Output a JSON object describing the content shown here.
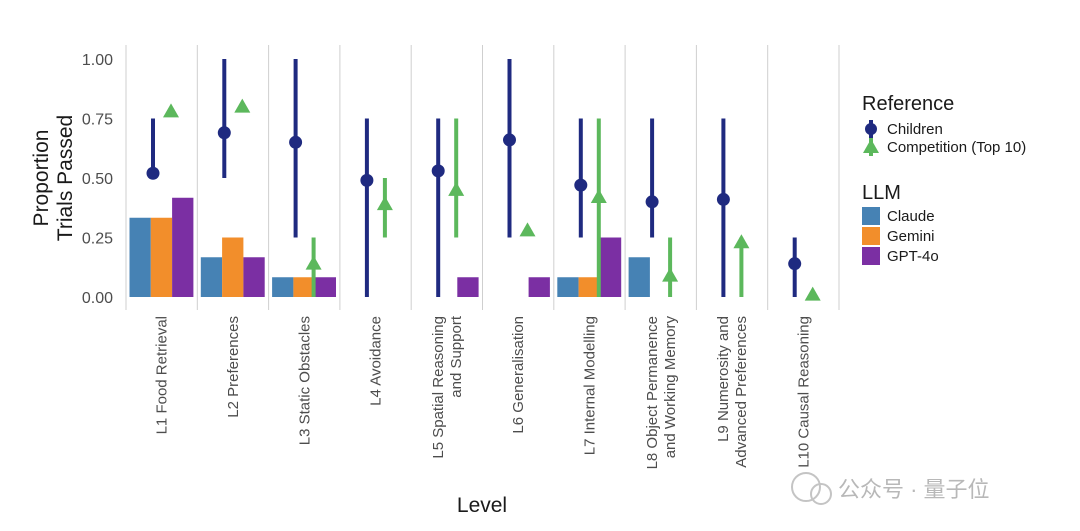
{
  "chart_data": {
    "type": "bar",
    "xlabel": "Level",
    "ylabel": [
      "Proportion",
      "Trials Passed"
    ],
    "ylim": [
      0,
      1
    ],
    "yticks": [
      "0.00",
      "0.25",
      "0.50",
      "0.75",
      "1.00"
    ],
    "categories": [
      [
        "L1 Food Retrieval"
      ],
      [
        "L2 Preferences"
      ],
      [
        "L3 Static Obstacles"
      ],
      [
        "L4 Avoidance"
      ],
      [
        "L5 Spatial Reasoning",
        "and Support"
      ],
      [
        "L6 Generalisation"
      ],
      [
        "L7 Internal Modelling"
      ],
      [
        "L8 Object Permanence",
        "and Working Memory"
      ],
      [
        "L9 Numerosity and",
        "Advanced Preferences"
      ],
      [
        "L10 Causal Reasoning"
      ]
    ],
    "series": [
      {
        "name": "Claude",
        "color": "#4682b4",
        "values": [
          0.333,
          0.167,
          0.083,
          0,
          0,
          0,
          0.083,
          0.167,
          0,
          0
        ]
      },
      {
        "name": "Gemini",
        "color": "#f28e2b",
        "values": [
          0.333,
          0.25,
          0.083,
          0,
          0,
          0,
          0.083,
          0,
          0,
          0
        ]
      },
      {
        "name": "GPT-4o",
        "color": "#7b2fa3",
        "values": [
          0.417,
          0.167,
          0.083,
          0,
          0.083,
          0.083,
          0.25,
          0,
          0,
          0
        ]
      }
    ],
    "reference": [
      {
        "name": "Children",
        "color": "#1f2a80",
        "marker": "circle",
        "points": [
          {
            "mean": 0.52,
            "low": 0.5,
            "high": 0.75
          },
          {
            "mean": 0.69,
            "low": 0.5,
            "high": 1.0
          },
          {
            "mean": 0.65,
            "low": 0.25,
            "high": 1.0
          },
          {
            "mean": 0.49,
            "low": 0.0,
            "high": 0.75
          },
          {
            "mean": 0.53,
            "low": 0.0,
            "high": 0.75
          },
          {
            "mean": 0.66,
            "low": 0.25,
            "high": 1.0
          },
          {
            "mean": 0.47,
            "low": 0.25,
            "high": 0.75
          },
          {
            "mean": 0.4,
            "low": 0.25,
            "high": 0.75
          },
          {
            "mean": 0.41,
            "low": 0.0,
            "high": 0.75
          },
          {
            "mean": 0.14,
            "low": 0.0,
            "high": 0.25
          }
        ]
      },
      {
        "name": "Competition (Top 10)",
        "color": "#5cb85c",
        "marker": "triangle",
        "points": [
          {
            "mean": 0.78,
            "low": null,
            "high": null
          },
          {
            "mean": 0.8,
            "low": null,
            "high": null
          },
          {
            "mean": 0.14,
            "low": 0.0,
            "high": 0.25
          },
          {
            "mean": 0.39,
            "low": 0.25,
            "high": 0.5
          },
          {
            "mean": 0.45,
            "low": 0.25,
            "high": 0.75
          },
          {
            "mean": 0.28,
            "low": null,
            "high": null
          },
          {
            "mean": 0.42,
            "low": 0.0,
            "high": 0.75
          },
          {
            "mean": 0.09,
            "low": 0.0,
            "high": 0.25
          },
          {
            "mean": 0.23,
            "low": 0.0,
            "high": 0.25
          },
          {
            "mean": 0.01,
            "low": null,
            "high": null
          }
        ]
      }
    ],
    "legends": [
      {
        "title": "Reference",
        "items": [
          "Children",
          "Competition (Top 10)"
        ]
      },
      {
        "title": "LLM",
        "items": [
          "Claude",
          "Gemini",
          "GPT-4o"
        ]
      }
    ],
    "grid": "vertical separators between levels"
  },
  "watermark": "公众号 · 量子位"
}
